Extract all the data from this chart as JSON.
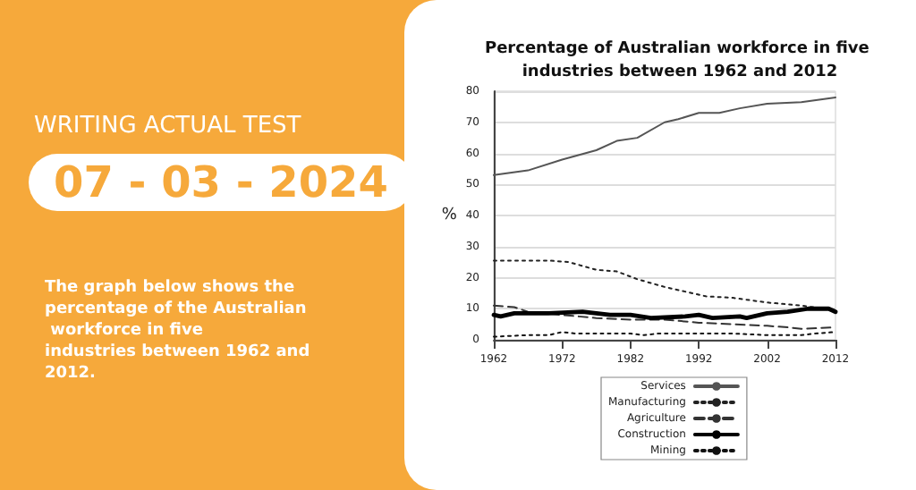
{
  "chart_data": {
    "type": "line",
    "title": "Percentage of Australian workforce in five industries between 1962 and 2012",
    "ylabel": "%",
    "xlim": [
      1962,
      2012
    ],
    "xticks": [
      1962,
      1972,
      1982,
      1992,
      2002,
      2012
    ],
    "ylim": [
      0,
      80
    ],
    "yticks": [
      0,
      10,
      20,
      30,
      40,
      50,
      60,
      70,
      80
    ],
    "grid": "y",
    "legend": "bottom",
    "marker": "none",
    "annotations": [
      "WRITING ACTUAL TEST",
      "07 - 03 - 2024",
      "The graph below shows the percentage of the Australian workforce in five industries between 1962 and 2012."
    ],
    "series": [
      {
        "name": "Services",
        "color": "#555555",
        "line_style": "solid",
        "x": [
          1962,
          1967,
          1972,
          1977,
          1980,
          1983,
          1987,
          1989,
          1992,
          1995,
          1998,
          2002,
          2007,
          2012
        ],
        "values": [
          53,
          54.5,
          58,
          61,
          64,
          65,
          70,
          71,
          73,
          73,
          74.5,
          76,
          76.5,
          78
        ]
      },
      {
        "name": "Manufacturing",
        "color": "#222222",
        "line_style": "dotted",
        "x": [
          1962,
          1967,
          1970,
          1973,
          1977,
          1980,
          1983,
          1987,
          1990,
          1993,
          1997,
          2002,
          2007,
          2012
        ],
        "values": [
          25.5,
          25.5,
          25.5,
          25,
          22.5,
          22,
          19.5,
          17,
          15.5,
          14,
          13.5,
          12,
          11,
          9.5
        ]
      },
      {
        "name": "Agriculture",
        "color": "#333333",
        "line_style": "dashed",
        "x": [
          1962,
          1965,
          1967,
          1972,
          1977,
          1982,
          1987,
          1992,
          1997,
          2002,
          2005,
          2007,
          2012
        ],
        "values": [
          11,
          10.5,
          9,
          8,
          7,
          6.5,
          6.5,
          5.5,
          5,
          4.5,
          4,
          3.5,
          4
        ]
      },
      {
        "name": "Construction",
        "color": "#000000",
        "line_style": "solid",
        "x": [
          1962,
          1963,
          1965,
          1970,
          1975,
          1979,
          1982,
          1985,
          1990,
          1992,
          1994,
          1998,
          1999,
          2002,
          2005,
          2008,
          2011,
          2012
        ],
        "values": [
          8,
          7.5,
          8.5,
          8.5,
          9,
          8,
          8,
          7,
          7.5,
          8,
          7,
          7.5,
          7,
          8.5,
          9,
          10,
          10,
          9
        ]
      },
      {
        "name": "Mining",
        "color": "#111111",
        "line_style": "dotted",
        "x": [
          1962,
          1967,
          1970,
          1972,
          1974,
          1982,
          1984,
          1986,
          1992,
          1997,
          2002,
          2007,
          2009,
          2012
        ],
        "values": [
          1,
          1.5,
          1.5,
          2.5,
          2,
          2,
          1.5,
          2,
          2,
          2,
          1.5,
          1.5,
          2,
          2.5
        ]
      }
    ]
  }
}
